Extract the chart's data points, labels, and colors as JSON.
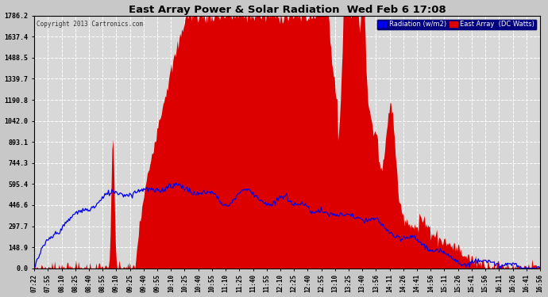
{
  "title": "East Array Power & Solar Radiation  Wed Feb 6 17:08",
  "copyright": "Copyright 2013 Cartronics.com",
  "legend_radiation": "Radiation (w/m2)",
  "legend_east_array": "East Array  (DC Watts)",
  "yticks": [
    0.0,
    148.9,
    297.7,
    446.6,
    595.4,
    744.3,
    893.1,
    1042.0,
    1190.8,
    1339.7,
    1488.5,
    1637.4,
    1786.2
  ],
  "ymax": 1786.2,
  "bg_color": "#c8c8c8",
  "plot_bg_color": "#d8d8d8",
  "grid_color": "#ffffff",
  "red_fill_color": "#dd0000",
  "blue_line_color": "#0000ee",
  "title_color": "#000000",
  "xtick_labels": [
    "07:22",
    "07:55",
    "08:10",
    "08:25",
    "08:40",
    "08:55",
    "09:10",
    "09:25",
    "09:40",
    "09:55",
    "10:10",
    "10:25",
    "10:40",
    "10:55",
    "11:10",
    "11:25",
    "11:40",
    "11:55",
    "12:10",
    "12:25",
    "12:40",
    "12:55",
    "13:10",
    "13:25",
    "13:40",
    "13:56",
    "14:11",
    "14:26",
    "14:41",
    "14:56",
    "15:11",
    "15:26",
    "15:41",
    "15:56",
    "16:11",
    "16:26",
    "16:41",
    "16:56"
  ]
}
